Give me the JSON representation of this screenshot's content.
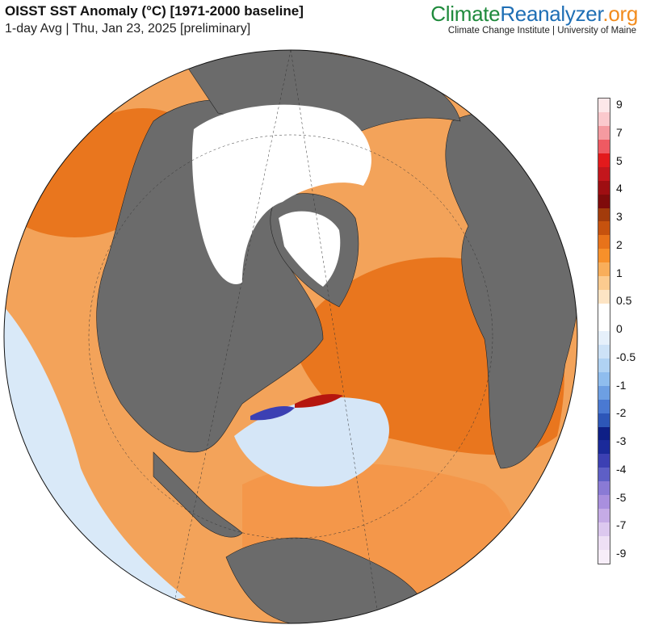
{
  "header": {
    "title": "OISST SST Anomaly (°C) [1971-2000 baseline]",
    "subtitle": "1-day Avg | Thu, Jan 23, 2025 [preliminary]"
  },
  "brand": {
    "part1": "Climate",
    "part2": "Reanalyzer",
    "part3": ".org",
    "affiliation": "Climate Change Institute | University of Maine"
  },
  "colors": {
    "land": "#6b6b6b",
    "ice": "#ffffff",
    "ocean_warm": "#f08a2a",
    "ocean_cool": "#cfe3f7"
  },
  "colorbar": {
    "tick_labels": [
      "9",
      "7",
      "5",
      "4",
      "3",
      "2",
      "1",
      "0.5",
      "0",
      "-0.5",
      "-1",
      "-2",
      "-3",
      "-4",
      "-5",
      "-7",
      "-9"
    ],
    "swatch_colors": [
      "#fde7e9",
      "#fbc9cd",
      "#f59aa0",
      "#ef5a62",
      "#e31a1c",
      "#c3161c",
      "#9e0e12",
      "#7f0b0b",
      "#a23b0b",
      "#c6520e",
      "#e8731a",
      "#f7902a",
      "#f9ae5a",
      "#fccb8f",
      "#fde4c4",
      "#ffffff",
      "#ffffff",
      "#e6f0fb",
      "#cde2f7",
      "#b0d2f3",
      "#8fbdee",
      "#6d9fe3",
      "#4a79d2",
      "#2d56b8",
      "#0e1f86",
      "#1b2a9a",
      "#3c40b3",
      "#5e5fc6",
      "#8a7ad5",
      "#a98fde",
      "#c5abe6",
      "#dcc8ef",
      "#eee0f5",
      "#f7eef9"
    ]
  }
}
